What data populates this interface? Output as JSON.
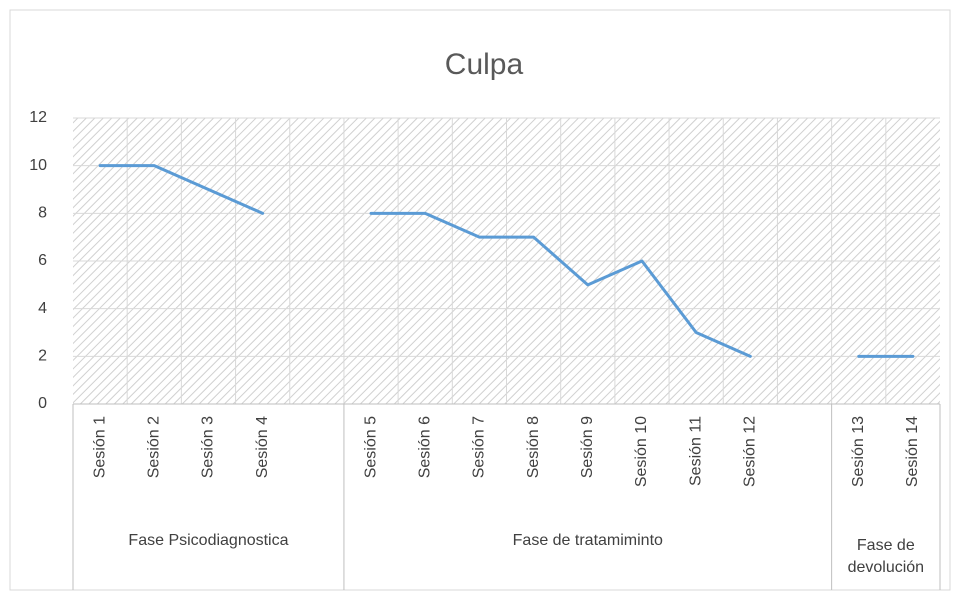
{
  "chart_data": {
    "type": "line",
    "title": "Culpa",
    "categories": [
      "Sesión 1",
      "Sesión 2",
      "Sesión 3",
      "Sesión 4",
      null,
      "Sesión 5",
      "Sesión 6",
      "Sesión 7",
      "Sesión 8",
      "Sesión 9",
      "Sesión 10",
      "Sesión 11",
      "Sesión 12",
      null,
      "Sesión 13",
      "Sesión 14"
    ],
    "values": [
      10,
      10,
      9,
      8,
      null,
      8,
      8,
      7,
      7,
      5,
      6,
      3,
      2,
      null,
      2,
      2
    ],
    "color": "#5b9bd5",
    "groups": [
      {
        "label": "Fase Psicodiagnostica",
        "from": 0,
        "to": 4
      },
      {
        "label": "Fase de tratamiminto",
        "from": 5,
        "to": 13
      },
      {
        "label": "Fase de devolución",
        "from": 14,
        "to": 15
      }
    ],
    "ylim": [
      0,
      12
    ],
    "yticks": [
      0,
      2,
      4,
      6,
      8,
      10,
      12
    ],
    "grid": true
  }
}
